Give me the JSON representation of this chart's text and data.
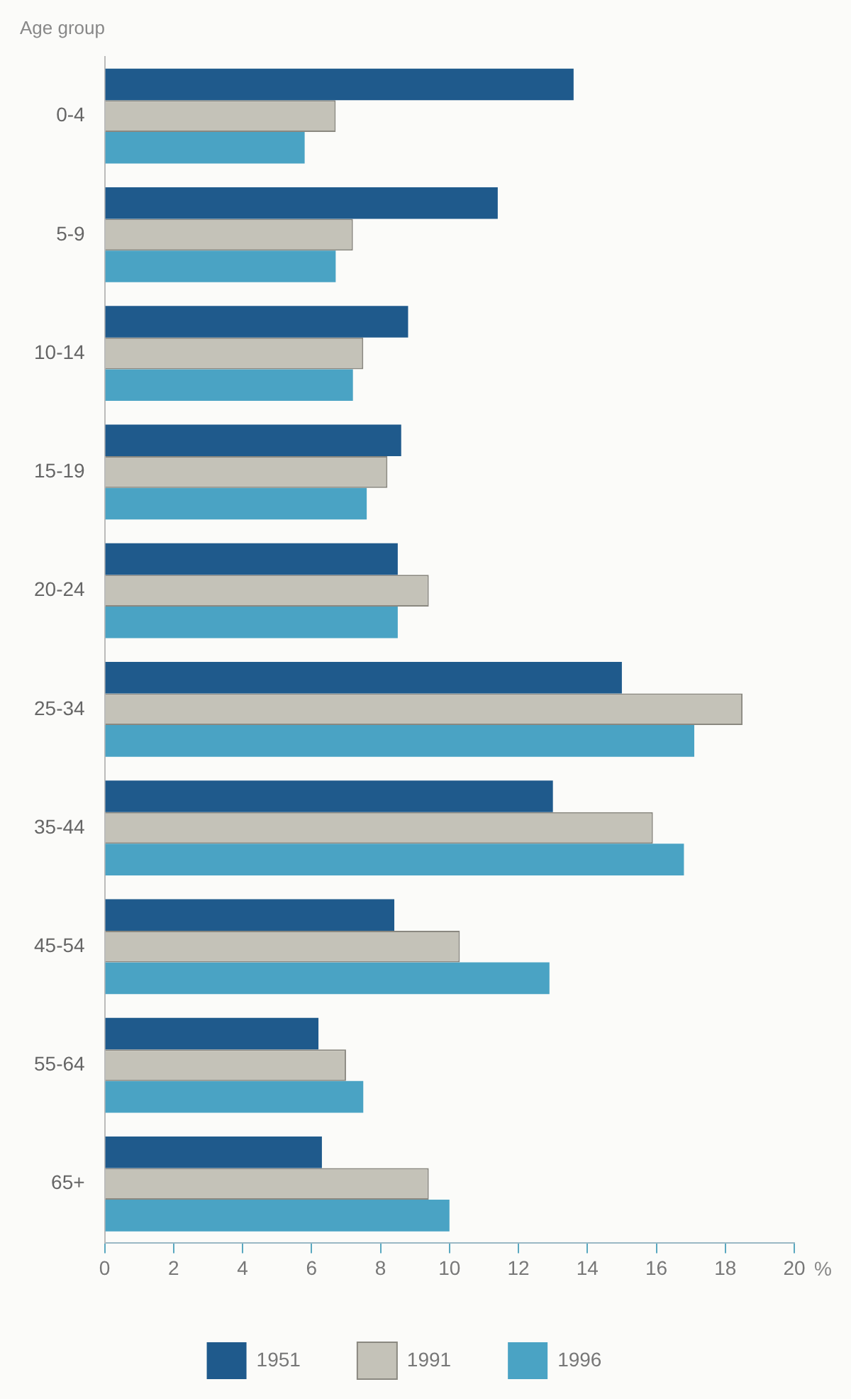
{
  "chart_data": {
    "type": "bar",
    "orientation": "horizontal",
    "ylabel": "Age group",
    "xlabel": "%",
    "categories": [
      "0-4",
      "5-9",
      "10-14",
      "15-19",
      "20-24",
      "25-34",
      "35-44",
      "45-54",
      "55-64",
      "65+"
    ],
    "series": [
      {
        "name": "1951",
        "color": "#1f5a8c",
        "values": [
          13.6,
          11.4,
          8.8,
          8.6,
          8.5,
          15.0,
          13.0,
          8.4,
          6.2,
          6.3
        ]
      },
      {
        "name": "1991",
        "color": "#c4c2b8",
        "values": [
          6.7,
          7.2,
          7.5,
          8.2,
          9.4,
          18.5,
          15.9,
          10.3,
          7.0,
          9.4
        ]
      },
      {
        "name": "1996",
        "color": "#4aa3c4",
        "values": [
          5.8,
          6.7,
          7.2,
          7.6,
          8.5,
          17.1,
          16.8,
          12.9,
          7.5,
          10.0
        ]
      }
    ],
    "xlim": [
      0,
      20
    ],
    "xticks": [
      0,
      2,
      4,
      6,
      8,
      10,
      12,
      14,
      16,
      18,
      20
    ],
    "grid": false,
    "legend": "bottom"
  }
}
